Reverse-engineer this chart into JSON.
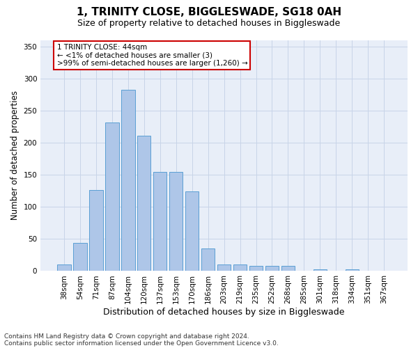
{
  "title1": "1, TRINITY CLOSE, BIGGLESWADE, SG18 0AH",
  "title2": "Size of property relative to detached houses in Biggleswade",
  "xlabel": "Distribution of detached houses by size in Biggleswade",
  "ylabel": "Number of detached properties",
  "footnote1": "Contains HM Land Registry data © Crown copyright and database right 2024.",
  "footnote2": "Contains public sector information licensed under the Open Government Licence v3.0.",
  "annotation_line1": "1 TRINITY CLOSE: 44sqm",
  "annotation_line2": "← <1% of detached houses are smaller (3)",
  "annotation_line3": ">99% of semi-detached houses are larger (1,260) →",
  "categories": [
    "38sqm",
    "54sqm",
    "71sqm",
    "87sqm",
    "104sqm",
    "120sqm",
    "137sqm",
    "153sqm",
    "170sqm",
    "186sqm",
    "203sqm",
    "219sqm",
    "235sqm",
    "252sqm",
    "268sqm",
    "285sqm",
    "301sqm",
    "318sqm",
    "334sqm",
    "351sqm",
    "367sqm"
  ],
  "values": [
    10,
    44,
    126,
    231,
    283,
    211,
    155,
    155,
    124,
    35,
    10,
    10,
    8,
    8,
    8,
    0,
    3,
    0,
    3,
    0,
    0
  ],
  "bar_color": "#aec6e8",
  "bar_edge_color": "#5a9fd4",
  "highlight_color": "#cc0000",
  "ylim": [
    0,
    360
  ],
  "yticks": [
    0,
    50,
    100,
    150,
    200,
    250,
    300,
    350
  ],
  "grid_color": "#c8d4e8",
  "bg_color": "#e8eef8",
  "annotation_box_color": "#ffffff",
  "annotation_box_edge": "#cc0000",
  "title1_fontsize": 11,
  "title2_fontsize": 9,
  "xlabel_fontsize": 9,
  "ylabel_fontsize": 8.5,
  "annotation_fontsize": 7.5,
  "tick_fontsize": 7.5,
  "footnote_fontsize": 6.5
}
